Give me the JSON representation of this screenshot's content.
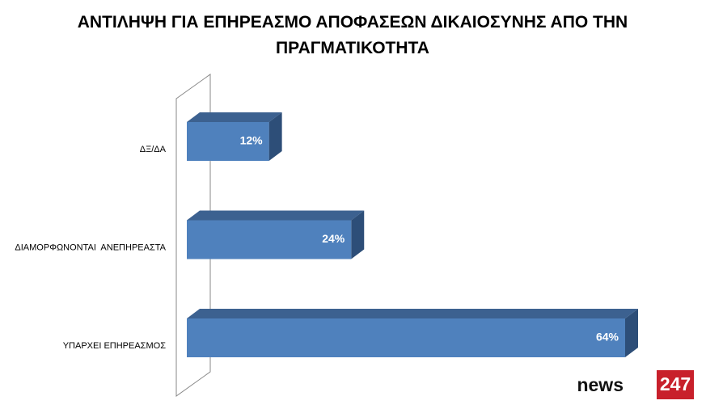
{
  "chart_data": {
    "type": "bar",
    "orientation": "horizontal",
    "title": "ΑΝΤΙΛΗΨΗ ΓΙΑ ΕΠΗΡΕΑΣΜΟ ΑΠΟΦΑΣΕΩΝ ΔΙΚΑΙΟΣΥΝΗΣ ΑΠΟ ΤΗΝ ΠΡΑΓΜΑΤΙΚΟΤΗΤΑ",
    "categories": [
      "ΔΞ/ΔΑ",
      "ΔΙΑΜΟΡΦΩΝΟΝΤΑΙ  ΑΝΕΠΗΡΕΑΣΤΑ",
      "ΥΠΑΡΧΕΙ ΕΠΗΡΕΑΣΜΟΣ"
    ],
    "values": [
      12,
      24,
      64
    ],
    "value_labels": [
      "12%",
      "24%",
      "64%"
    ],
    "color": "#4f81bd"
  },
  "logo": {
    "word": "news",
    "number": "247"
  }
}
